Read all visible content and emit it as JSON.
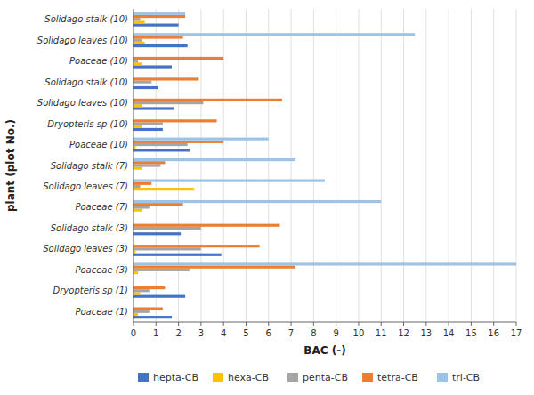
{
  "chart_data": {
    "type": "bar",
    "orientation": "horizontal",
    "xlabel": "BAC (-)",
    "ylabel": "plant (plot No.)",
    "categories": [
      "Solidago stalk (10)",
      "Solidago leaves (10)",
      "Poaceae (10)",
      "Solidago stalk (10)",
      "Solidago leaves (10)",
      "Dryopteris sp (10)",
      "Poaceae (10)",
      "Solidago stalk (7)",
      "Solidago leaves (7)",
      "Poaceae (7)",
      "Solidago stalk (3)",
      "Solidago leaves (3)",
      "Poaceae (3)",
      "Dryopteris sp (1)",
      "Poaceae (1)"
    ],
    "series": [
      {
        "name": "hepta-CB",
        "color": "#4472C4",
        "values": [
          2.0,
          2.4,
          1.7,
          1.1,
          1.8,
          1.3,
          2.5,
          0.0,
          0.0,
          0.0,
          2.1,
          3.9,
          0.0,
          2.3,
          1.7
        ]
      },
      {
        "name": "hexa-CB",
        "color": "#FFC000",
        "values": [
          0.5,
          0.5,
          0.4,
          0.0,
          0.4,
          0.4,
          0.1,
          0.4,
          2.7,
          0.4,
          0.0,
          0.1,
          0.2,
          0.3,
          0.2
        ]
      },
      {
        "name": "penta-CB",
        "color": "#A5A5A5",
        "values": [
          0.3,
          0.4,
          0.2,
          0.8,
          3.1,
          1.3,
          2.4,
          1.2,
          0.3,
          0.7,
          3.0,
          3.0,
          2.5,
          0.7,
          0.7
        ]
      },
      {
        "name": "tetra-CB",
        "color": "#ED7D31",
        "values": [
          2.3,
          2.2,
          4.0,
          2.9,
          6.6,
          3.7,
          4.0,
          1.4,
          0.8,
          2.2,
          6.5,
          5.6,
          7.2,
          1.4,
          1.3
        ]
      },
      {
        "name": "tri-CB",
        "color": "#9DC3E6",
        "values": [
          2.3,
          12.5,
          0.0,
          0.0,
          0.0,
          0.0,
          6.0,
          7.2,
          8.5,
          11.0,
          0.0,
          0.0,
          17.0,
          0.0,
          0.0
        ]
      }
    ],
    "xlim": [
      0,
      17
    ],
    "xticks": [
      0,
      1,
      2,
      3,
      4,
      5,
      6,
      7,
      8,
      9,
      10,
      11,
      12,
      13,
      14,
      15,
      16,
      17
    ],
    "grid": true,
    "legend": "bottom"
  }
}
